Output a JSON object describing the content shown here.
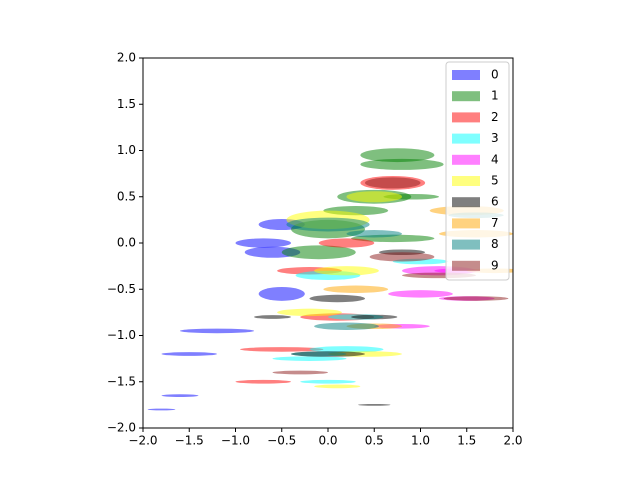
{
  "chart_data": {
    "type": "ellipse",
    "xlim": [
      -2,
      2
    ],
    "ylim": [
      -2,
      2
    ],
    "xticks": [
      {
        "value": -2,
        "label": "−2.0"
      },
      {
        "value": -1.5,
        "label": "−1.5"
      },
      {
        "value": -1,
        "label": "−1.0"
      },
      {
        "value": -0.5,
        "label": "−0.5"
      },
      {
        "value": 0,
        "label": "0.0"
      },
      {
        "value": 0.5,
        "label": "0.5"
      },
      {
        "value": 1,
        "label": "1.0"
      },
      {
        "value": 1.5,
        "label": "1.5"
      },
      {
        "value": 2,
        "label": "2.0"
      }
    ],
    "yticks": [
      {
        "value": -2,
        "label": "−2.0"
      },
      {
        "value": -1.5,
        "label": "−1.5"
      },
      {
        "value": -1,
        "label": "−1.0"
      },
      {
        "value": -0.5,
        "label": "−0.5"
      },
      {
        "value": 0,
        "label": "0.0"
      },
      {
        "value": 0.5,
        "label": "0.5"
      },
      {
        "value": 1,
        "label": "1.0"
      },
      {
        "value": 1.5,
        "label": "1.5"
      },
      {
        "value": 2,
        "label": "2.0"
      }
    ],
    "legend": "upper right",
    "alpha": 0.5,
    "series": [
      {
        "name": "0",
        "color": "#0000ff",
        "x": [
          -0.5,
          -0.7,
          -0.6,
          -0.5,
          -1.5,
          -1.6,
          -1.2,
          -1.8
        ],
        "y": [
          0.2,
          0.0,
          -0.1,
          -0.55,
          -1.2,
          -1.65,
          -0.95,
          -1.8
        ],
        "width": [
          0.5,
          0.6,
          0.6,
          0.5,
          0.6,
          0.4,
          0.8,
          0.3
        ],
        "height": [
          0.12,
          0.1,
          0.12,
          0.15,
          0.04,
          0.03,
          0.05,
          0.02
        ]
      },
      {
        "name": "1",
        "color": "#008000",
        "x": [
          0.75,
          0.8,
          0.5,
          0.3,
          0.0,
          -0.1,
          0.9,
          0.7
        ],
        "y": [
          0.95,
          0.85,
          0.5,
          0.35,
          0.15,
          -0.1,
          0.5,
          0.05
        ],
        "width": [
          0.8,
          0.9,
          0.8,
          0.7,
          0.8,
          0.8,
          0.6,
          0.9
        ],
        "height": [
          0.15,
          0.12,
          0.15,
          0.1,
          0.2,
          0.15,
          0.06,
          0.08
        ]
      },
      {
        "name": "2",
        "color": "#ff0000",
        "x": [
          0.7,
          0.2,
          -0.2,
          0.1,
          -0.5,
          -0.7
        ],
        "y": [
          0.65,
          0.0,
          -0.3,
          -0.8,
          -1.15,
          -1.5
        ],
        "width": [
          0.7,
          0.6,
          0.7,
          0.8,
          0.9,
          0.6
        ],
        "height": [
          0.15,
          0.1,
          0.08,
          0.08,
          0.05,
          0.04
        ]
      },
      {
        "name": "3",
        "color": "#00ffff",
        "x": [
          0.0,
          0.3,
          0.2,
          -0.2,
          0.0,
          1.0
        ],
        "y": [
          -0.35,
          -0.8,
          -1.15,
          -1.25,
          -1.5,
          -0.2
        ],
        "width": [
          0.7,
          0.6,
          0.8,
          0.8,
          0.6,
          0.6
        ],
        "height": [
          0.1,
          0.06,
          0.07,
          0.05,
          0.04,
          0.06
        ]
      },
      {
        "name": "4",
        "color": "#ff00ff",
        "x": [
          1.2,
          1.0,
          1.5,
          0.8,
          1.4
        ],
        "y": [
          -0.3,
          -0.55,
          -0.6,
          -0.9,
          -0.3
        ],
        "width": [
          0.8,
          0.7,
          0.6,
          0.6,
          0.5
        ],
        "height": [
          0.1,
          0.08,
          0.05,
          0.05,
          0.05
        ]
      },
      {
        "name": "5",
        "color": "#ffff00",
        "x": [
          0.0,
          0.5,
          0.2,
          -0.2,
          0.4,
          0.1
        ],
        "y": [
          0.25,
          0.5,
          -0.3,
          -0.75,
          -1.2,
          -1.55
        ],
        "width": [
          0.9,
          0.6,
          0.7,
          0.7,
          0.8,
          0.5
        ],
        "height": [
          0.2,
          0.12,
          0.1,
          0.08,
          0.06,
          0.04
        ]
      },
      {
        "name": "6",
        "color": "#000000",
        "x": [
          0.1,
          0.5,
          -0.6,
          0.0,
          0.5,
          0.8
        ],
        "y": [
          -0.6,
          -0.8,
          -0.8,
          -1.2,
          -1.75,
          -0.1
        ],
        "width": [
          0.6,
          0.5,
          0.4,
          0.8,
          0.35,
          0.5
        ],
        "height": [
          0.08,
          0.05,
          0.04,
          0.06,
          0.02,
          0.06
        ]
      },
      {
        "name": "7",
        "color": "#ffa500",
        "x": [
          1.5,
          1.6,
          0.3,
          1.8,
          0.5
        ],
        "y": [
          0.35,
          0.1,
          -0.5,
          -0.3,
          -0.9
        ],
        "width": [
          0.8,
          0.8,
          0.7,
          0.6,
          0.6
        ],
        "height": [
          0.1,
          0.08,
          0.08,
          0.05,
          0.06
        ]
      },
      {
        "name": "8",
        "color": "#008080",
        "x": [
          0.0,
          0.5,
          0.2,
          -0.1,
          1.6
        ],
        "y": [
          0.2,
          0.1,
          -0.9,
          -1.2,
          0.3
        ],
        "width": [
          0.9,
          0.6,
          0.7,
          0.6,
          0.6
        ],
        "height": [
          0.15,
          0.08,
          0.08,
          0.05,
          0.06
        ]
      },
      {
        "name": "9",
        "color": "#8b1a1a",
        "x": [
          0.7,
          0.8,
          1.2,
          1.6,
          -0.3
        ],
        "y": [
          0.65,
          -0.15,
          -0.35,
          -0.6,
          -1.4
        ],
        "width": [
          0.6,
          0.7,
          0.8,
          0.7,
          0.6
        ],
        "height": [
          0.12,
          0.1,
          0.06,
          0.05,
          0.04
        ]
      }
    ]
  }
}
